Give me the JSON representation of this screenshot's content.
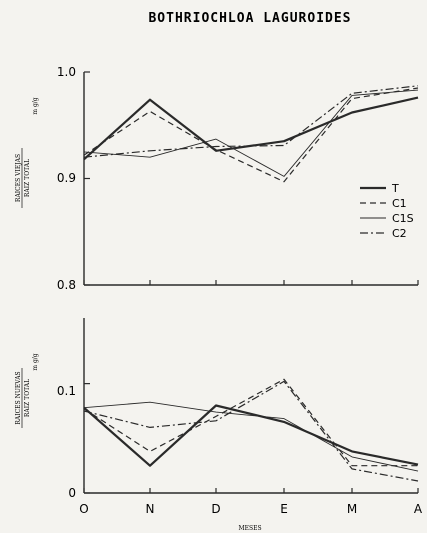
{
  "chart_data": {
    "title": "BOTHRIOCHLOA LAGUROIDES",
    "xlabel": "MESES",
    "categories": [
      "O",
      "N",
      "D",
      "E",
      "M",
      "A"
    ],
    "panels": [
      {
        "type": "line",
        "ylim": [
          0.8,
          1.0
        ],
        "yticks": [
          "1.0",
          "0.9",
          "0.8"
        ],
        "yticks_values": [
          1.0,
          0.9,
          0.8
        ],
        "ylabel_top": "RAICES VIEJAS",
        "ylabel_bottom": "RAIZ TOTAL",
        "ylabel_unit": "m g/g",
        "series": [
          {
            "name": "T",
            "values": [
              0.918,
              0.974,
              0.926,
              0.935,
              0.962,
              0.976
            ]
          },
          {
            "name": "C1",
            "values": [
              0.922,
              0.963,
              0.927,
              0.897,
              0.975,
              0.985
            ]
          },
          {
            "name": "C1S",
            "values": [
              0.925,
              0.92,
              0.937,
              0.902,
              0.978,
              0.983
            ]
          },
          {
            "name": "C2",
            "values": [
              0.92,
              0.926,
              0.93,
              0.931,
              0.98,
              0.987
            ]
          }
        ]
      },
      {
        "type": "line",
        "ylim": [
          0.0,
          0.16
        ],
        "yticks": [
          "0.1",
          "0"
        ],
        "yticks_values": [
          0.1,
          0.0
        ],
        "ylabel_top": "RAICES NUEVAS",
        "ylabel_bottom": "RAIZ TOTAL",
        "ylabel_unit": "m g/g",
        "series": [
          {
            "name": "T",
            "values": [
              0.078,
              0.025,
              0.08,
              0.065,
              0.038,
              0.026
            ]
          },
          {
            "name": "C1",
            "values": [
              0.077,
              0.038,
              0.07,
              0.104,
              0.025,
              0.025
            ]
          },
          {
            "name": "C1S",
            "values": [
              0.078,
              0.083,
              0.074,
              0.068,
              0.033,
              0.02
            ]
          },
          {
            "name": "C2",
            "values": [
              0.075,
              0.06,
              0.066,
              0.102,
              0.022,
              0.011
            ]
          }
        ]
      }
    ],
    "legend": {
      "position": "right",
      "entries": [
        {
          "label": "T",
          "style": "solid-thick"
        },
        {
          "label": "C1",
          "style": "dashed"
        },
        {
          "label": "C1S",
          "style": "solid-thin"
        },
        {
          "label": "C2",
          "style": "dash-dot"
        }
      ]
    }
  }
}
